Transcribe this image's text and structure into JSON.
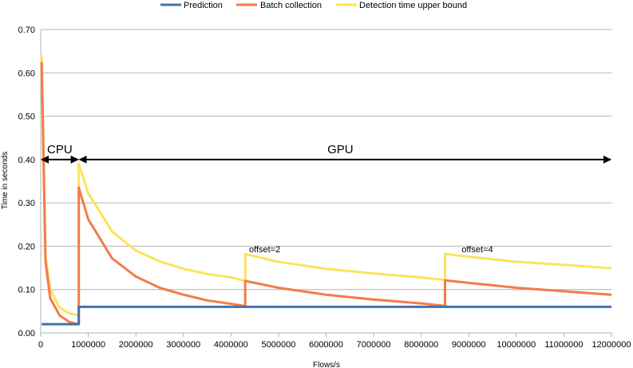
{
  "chart_data": {
    "type": "line",
    "xlabel": "Flows/s",
    "ylabel": "Time in seconds",
    "xlim": [
      0,
      12000000
    ],
    "ylim": [
      0,
      0.7
    ],
    "xticks": [
      "0",
      "1000000",
      "2000000",
      "3000000",
      "4000000",
      "5000000",
      "6000000",
      "7000000",
      "8000000",
      "9000000",
      "10000000",
      "11000000",
      "12000000"
    ],
    "yticks": [
      "0.00",
      "0.10",
      "0.20",
      "0.30",
      "0.40",
      "0.50",
      "0.60",
      "0.70"
    ],
    "grid": "horizontal",
    "legend_position": "top",
    "series": [
      {
        "name": "Prediction",
        "color": "#4472a8",
        "points": [
          [
            20000,
            0.02
          ],
          [
            400000,
            0.02
          ],
          [
            800000,
            0.02
          ],
          [
            800000,
            0.06
          ],
          [
            1000000,
            0.06
          ],
          [
            4300000,
            0.06
          ],
          [
            8500000,
            0.06
          ],
          [
            12000000,
            0.06
          ]
        ]
      },
      {
        "name": "Batch collection",
        "color": "#f37b4a",
        "points": [
          [
            20000,
            0.625
          ],
          [
            100000,
            0.165
          ],
          [
            200000,
            0.08
          ],
          [
            400000,
            0.04
          ],
          [
            600000,
            0.025
          ],
          [
            800000,
            0.02
          ],
          [
            800000,
            0.335
          ],
          [
            1000000,
            0.262
          ],
          [
            1500000,
            0.172
          ],
          [
            2000000,
            0.13
          ],
          [
            2500000,
            0.104
          ],
          [
            3000000,
            0.088
          ],
          [
            3500000,
            0.075
          ],
          [
            4000000,
            0.067
          ],
          [
            4300000,
            0.062
          ],
          [
            4300000,
            0.12
          ],
          [
            5000000,
            0.104
          ],
          [
            6000000,
            0.088
          ],
          [
            7000000,
            0.077
          ],
          [
            8000000,
            0.068
          ],
          [
            8500000,
            0.062
          ],
          [
            8500000,
            0.121
          ],
          [
            10000000,
            0.104
          ],
          [
            11000000,
            0.096
          ],
          [
            12000000,
            0.088
          ]
        ]
      },
      {
        "name": "Detection time upper bound",
        "color": "#fde35a",
        "points": [
          [
            20000,
            0.642
          ],
          [
            100000,
            0.178
          ],
          [
            200000,
            0.1
          ],
          [
            400000,
            0.058
          ],
          [
            600000,
            0.045
          ],
          [
            800000,
            0.04
          ],
          [
            800000,
            0.39
          ],
          [
            1000000,
            0.322
          ],
          [
            1500000,
            0.234
          ],
          [
            2000000,
            0.19
          ],
          [
            2500000,
            0.165
          ],
          [
            3000000,
            0.148
          ],
          [
            3500000,
            0.136
          ],
          [
            4000000,
            0.128
          ],
          [
            4300000,
            0.12
          ],
          [
            4300000,
            0.182
          ],
          [
            5000000,
            0.164
          ],
          [
            6000000,
            0.148
          ],
          [
            7000000,
            0.137
          ],
          [
            8000000,
            0.128
          ],
          [
            8500000,
            0.122
          ],
          [
            8500000,
            0.182
          ],
          [
            10000000,
            0.164
          ],
          [
            11000000,
            0.157
          ],
          [
            12000000,
            0.149
          ]
        ]
      }
    ],
    "annotations": [
      {
        "text": "CPU",
        "x": 400000,
        "y": 0.4
      },
      {
        "text": "GPU",
        "x": 6300000,
        "y": 0.4
      },
      {
        "text": "offset=2",
        "x": 4380000,
        "y": 0.19
      },
      {
        "text": "offset=4",
        "x": 8850000,
        "y": 0.19
      }
    ],
    "region_arrows": [
      {
        "label": "CPU",
        "x_start": 0,
        "x_end": 800000,
        "y": 0.4
      },
      {
        "label": "GPU",
        "x_start": 800000,
        "x_end": 12000000,
        "y": 0.4
      }
    ]
  }
}
